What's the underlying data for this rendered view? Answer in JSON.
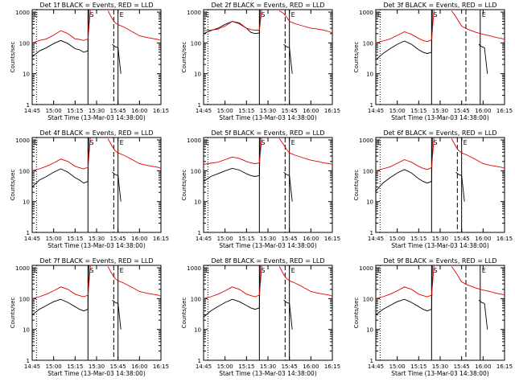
{
  "colors": {
    "events": "#000000",
    "lld": "#e00000",
    "axes": "#000000",
    "background": "#ffffff"
  },
  "shared": {
    "ylabel": "Counts/sec",
    "xlabel": "Start Time (13-Mar-03 14:38:00)",
    "x_ticks": [
      "14:45",
      "15:00",
      "15:15",
      "15:30",
      "15:45",
      "16:00",
      "16:15"
    ],
    "x_tick_values": [
      0,
      15,
      30,
      45,
      60,
      75,
      90
    ],
    "y_ticks": [
      "1",
      "10",
      "100",
      "1000"
    ],
    "y_tick_values": [
      1,
      10,
      100,
      1000
    ],
    "corner_marks": {
      "left": "E",
      "middle": "S",
      "right": "E"
    }
  },
  "chart_data": [
    {
      "type": "line",
      "title": "Det 1f BLACK = Events, RED = LLD",
      "xlim": [
        0,
        90
      ],
      "ylim": [
        1,
        1200
      ],
      "yscale": "log",
      "x": [
        0,
        5,
        10,
        15,
        20,
        25,
        30,
        33,
        36,
        39
      ],
      "series": [
        {
          "values": [
            35,
            55,
            70,
            95,
            120,
            95,
            65,
            60,
            50,
            55
          ]
        },
        {
          "values": [
            100,
            120,
            135,
            180,
            250,
            200,
            135,
            130,
            120,
            135
          ]
        }
      ],
      "series_after_event": [
        {
          "x": [
            56,
            58,
            60,
            62
          ],
          "values": [
            90,
            75,
            70,
            10
          ]
        },
        {
          "x": [
            53,
            56,
            58,
            60,
            64,
            70,
            75,
            80,
            84,
            88,
            90
          ],
          "values": [
            1100,
            600,
            450,
            390,
            330,
            230,
            170,
            150,
            140,
            130,
            120
          ]
        }
      ],
      "markers": {
        "dotted": 3,
        "solid": 39,
        "dashed": 57,
        "solid_end": 60
      }
    },
    {
      "type": "line",
      "title": "Det 2f BLACK = Events, RED = LLD",
      "xlim": [
        0,
        90
      ],
      "ylim": [
        1,
        1200
      ],
      "yscale": "log",
      "x": [
        0,
        5,
        10,
        15,
        20,
        25,
        30,
        33,
        36,
        39
      ],
      "series": [
        {
          "values": [
            200,
            250,
            300,
            400,
            500,
            420,
            300,
            220,
            200,
            210
          ]
        },
        {
          "values": [
            250,
            260,
            280,
            350,
            500,
            450,
            300,
            270,
            260,
            260
          ]
        }
      ],
      "series_after_event": [
        {
          "x": [
            56,
            58,
            60,
            62
          ],
          "values": [
            90,
            75,
            70,
            10
          ]
        },
        {
          "x": [
            53,
            56,
            58,
            60,
            64,
            70,
            75,
            80,
            84,
            88,
            90
          ],
          "values": [
            1100,
            900,
            700,
            500,
            420,
            350,
            300,
            280,
            260,
            230,
            210
          ]
        }
      ],
      "markers": {
        "dotted": 3,
        "solid": 39,
        "dashed": 57,
        "solid_end": 60
      }
    },
    {
      "type": "line",
      "title": "Det 3f BLACK = Events, RED = LLD",
      "xlim": [
        0,
        90
      ],
      "ylim": [
        1,
        1200
      ],
      "yscale": "log",
      "x": [
        0,
        5,
        10,
        15,
        20,
        25,
        30,
        33,
        36,
        39
      ],
      "series": [
        {
          "values": [
            28,
            45,
            65,
            90,
            115,
            90,
            60,
            50,
            45,
            50
          ]
        },
        {
          "values": [
            100,
            115,
            135,
            175,
            230,
            190,
            140,
            120,
            110,
            125
          ]
        }
      ],
      "series_after_event": [
        {
          "x": [
            72,
            74,
            76,
            78
          ],
          "values": [
            90,
            75,
            70,
            10
          ]
        },
        {
          "x": [
            53,
            56,
            58,
            60,
            64,
            70,
            75,
            80,
            84,
            88,
            90
          ],
          "values": [
            1100,
            700,
            500,
            350,
            280,
            220,
            190,
            170,
            150,
            140,
            130
          ]
        }
      ],
      "markers": {
        "dotted": 3,
        "solid": 39,
        "dashed": 63,
        "solid_end": 73
      }
    },
    {
      "type": "line",
      "title": "Det 4f BLACK = Events, RED = LLD",
      "xlim": [
        0,
        90
      ],
      "ylim": [
        1,
        1200
      ],
      "yscale": "log",
      "x": [
        0,
        5,
        10,
        15,
        20,
        25,
        30,
        33,
        36,
        39
      ],
      "series": [
        {
          "values": [
            30,
            50,
            65,
            90,
            115,
            90,
            60,
            50,
            40,
            45
          ]
        },
        {
          "values": [
            100,
            115,
            140,
            180,
            240,
            200,
            140,
            125,
            115,
            130
          ]
        }
      ],
      "series_after_event": [
        {
          "x": [
            56,
            58,
            60,
            62
          ],
          "values": [
            90,
            75,
            70,
            10
          ]
        },
        {
          "x": [
            53,
            56,
            58,
            60,
            64,
            70,
            75,
            80,
            84,
            88,
            90
          ],
          "values": [
            1100,
            600,
            450,
            380,
            320,
            230,
            170,
            150,
            140,
            130,
            120
          ]
        }
      ],
      "markers": {
        "dotted": 3,
        "solid": 39,
        "dashed": 57,
        "solid_end": 60
      }
    },
    {
      "type": "line",
      "title": "Det 5f BLACK = Events, RED = LLD",
      "xlim": [
        0,
        90
      ],
      "ylim": [
        1,
        1200
      ],
      "yscale": "log",
      "x": [
        0,
        5,
        10,
        15,
        20,
        25,
        30,
        33,
        36,
        39
      ],
      "series": [
        {
          "values": [
            45,
            65,
            80,
            100,
            120,
            105,
            80,
            70,
            65,
            70
          ]
        },
        {
          "values": [
            160,
            175,
            190,
            230,
            280,
            250,
            200,
            180,
            170,
            180
          ]
        }
      ],
      "series_after_event": [
        {
          "x": [
            56,
            58,
            60,
            62
          ],
          "values": [
            90,
            75,
            70,
            10
          ]
        },
        {
          "x": [
            53,
            56,
            58,
            60,
            64,
            70,
            75,
            80,
            84,
            88,
            90
          ],
          "values": [
            1100,
            700,
            500,
            380,
            320,
            260,
            220,
            200,
            180,
            170,
            160
          ]
        }
      ],
      "markers": {
        "dotted": 3,
        "solid": 39,
        "dashed": 57,
        "solid_end": 60
      }
    },
    {
      "type": "line",
      "title": "Det 6f BLACK = Events, RED = LLD",
      "xlim": [
        0,
        90
      ],
      "ylim": [
        1,
        1200
      ],
      "yscale": "log",
      "x": [
        0,
        5,
        10,
        15,
        20,
        25,
        30,
        33,
        36,
        39
      ],
      "series": [
        {
          "values": [
            22,
            40,
            60,
            85,
            110,
            85,
            55,
            45,
            40,
            45
          ]
        },
        {
          "values": [
            100,
            115,
            135,
            175,
            230,
            190,
            140,
            120,
            110,
            125
          ]
        }
      ],
      "series_after_event": [
        {
          "x": [
            56,
            58,
            60,
            62
          ],
          "values": [
            90,
            75,
            70,
            10
          ]
        },
        {
          "x": [
            53,
            56,
            58,
            60,
            64,
            70,
            75,
            80,
            84,
            88,
            90
          ],
          "values": [
            1100,
            600,
            450,
            380,
            320,
            230,
            170,
            150,
            140,
            130,
            120
          ]
        }
      ],
      "markers": {
        "dotted": 3,
        "solid": 39,
        "dashed": 57,
        "solid_end": 60
      }
    },
    {
      "type": "line",
      "title": "Det 7f BLACK = Events, RED = LLD",
      "xlim": [
        0,
        90
      ],
      "ylim": [
        1,
        1200
      ],
      "yscale": "log",
      "x": [
        0,
        5,
        10,
        15,
        20,
        25,
        30,
        33,
        36,
        39
      ],
      "series": [
        {
          "values": [
            30,
            45,
            60,
            80,
            95,
            75,
            55,
            45,
            40,
            45
          ]
        },
        {
          "values": [
            100,
            115,
            140,
            180,
            240,
            200,
            140,
            125,
            115,
            130
          ]
        }
      ],
      "series_after_event": [
        {
          "x": [
            56,
            58,
            60,
            62
          ],
          "values": [
            90,
            75,
            70,
            10
          ]
        },
        {
          "x": [
            53,
            56,
            58,
            60,
            64,
            70,
            75,
            80,
            84,
            88,
            90
          ],
          "values": [
            1100,
            600,
            450,
            380,
            320,
            230,
            170,
            150,
            140,
            130,
            120
          ]
        }
      ],
      "markers": {
        "dotted": 3,
        "solid": 39,
        "dashed": 57,
        "solid_end": 60
      }
    },
    {
      "type": "line",
      "title": "Det 8f BLACK = Events, RED = LLD",
      "xlim": [
        0,
        90
      ],
      "ylim": [
        1,
        1200
      ],
      "yscale": "log",
      "x": [
        0,
        5,
        10,
        15,
        20,
        25,
        30,
        33,
        36,
        39
      ],
      "series": [
        {
          "values": [
            25,
            40,
            55,
            75,
            95,
            80,
            60,
            50,
            45,
            50
          ]
        },
        {
          "values": [
            100,
            115,
            140,
            180,
            240,
            200,
            140,
            125,
            115,
            130
          ]
        }
      ],
      "series_after_event": [
        {
          "x": [
            56,
            58,
            60,
            62
          ],
          "values": [
            90,
            75,
            70,
            10
          ]
        },
        {
          "x": [
            53,
            56,
            58,
            60,
            64,
            70,
            75,
            80,
            84,
            88,
            90
          ],
          "values": [
            1100,
            600,
            450,
            380,
            320,
            230,
            170,
            150,
            140,
            130,
            120
          ]
        }
      ],
      "markers": {
        "dotted": 3,
        "solid": 39,
        "dashed": 57,
        "solid_end": 60
      }
    },
    {
      "type": "line",
      "title": "Det 9f BLACK = Events, RED = LLD",
      "xlim": [
        0,
        90
      ],
      "ylim": [
        1,
        1200
      ],
      "yscale": "log",
      "x": [
        0,
        5,
        10,
        15,
        20,
        25,
        30,
        33,
        36,
        39
      ],
      "series": [
        {
          "values": [
            30,
            45,
            60,
            80,
            95,
            75,
            55,
            45,
            40,
            45
          ]
        },
        {
          "values": [
            100,
            115,
            140,
            180,
            240,
            200,
            140,
            125,
            115,
            130
          ]
        }
      ],
      "series_after_event": [
        {
          "x": [
            72,
            74,
            76,
            78
          ],
          "values": [
            90,
            75,
            70,
            10
          ]
        },
        {
          "x": [
            53,
            56,
            58,
            60,
            64,
            70,
            75,
            80,
            84,
            88,
            90
          ],
          "values": [
            1100,
            700,
            500,
            350,
            280,
            220,
            190,
            170,
            150,
            140,
            130
          ]
        }
      ],
      "markers": {
        "dotted": 3,
        "solid": 39,
        "dashed": 63,
        "solid_end": 73
      }
    }
  ]
}
